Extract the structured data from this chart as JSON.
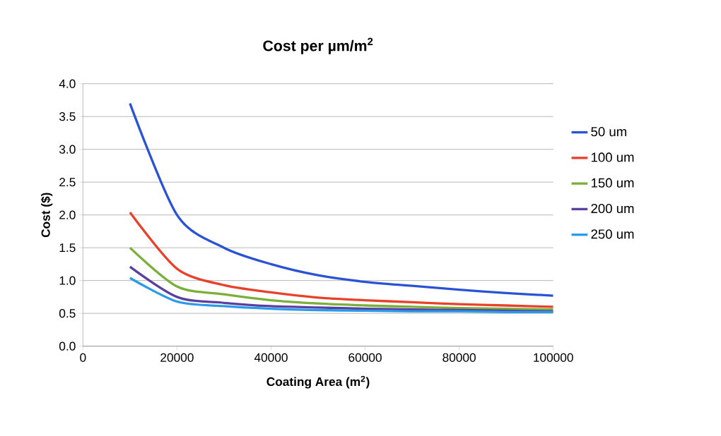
{
  "chart_data": {
    "type": "line",
    "title": "Cost per µm/m$^{2}$",
    "xlabel": "Coating Area (m$^{2}$)",
    "ylabel": "Cost ($)",
    "x": [
      10000,
      20000,
      30000,
      40000,
      50000,
      60000,
      70000,
      80000,
      90000,
      100000
    ],
    "series": [
      {
        "name": "50 um",
        "color": "#2a52d4",
        "values": [
          3.7,
          2.0,
          1.5,
          1.25,
          1.08,
          0.98,
          0.92,
          0.86,
          0.81,
          0.77
        ]
      },
      {
        "name": "100 um",
        "color": "#e8412a",
        "values": [
          2.04,
          1.18,
          0.93,
          0.82,
          0.74,
          0.7,
          0.67,
          0.64,
          0.62,
          0.6
        ]
      },
      {
        "name": "150 um",
        "color": "#7ab03a",
        "values": [
          1.5,
          0.91,
          0.79,
          0.7,
          0.65,
          0.62,
          0.6,
          0.58,
          0.57,
          0.56
        ]
      },
      {
        "name": "200 um",
        "color": "#5a3fa0",
        "values": [
          1.21,
          0.75,
          0.66,
          0.61,
          0.59,
          0.57,
          0.56,
          0.55,
          0.54,
          0.53
        ]
      },
      {
        "name": "250 um",
        "color": "#2a9be8",
        "values": [
          1.04,
          0.68,
          0.61,
          0.57,
          0.55,
          0.54,
          0.53,
          0.53,
          0.52,
          0.52
        ]
      }
    ],
    "xlim": [
      0,
      100000
    ],
    "xticks": [
      0,
      20000,
      40000,
      60000,
      80000,
      100000
    ],
    "ylim": [
      0,
      4
    ],
    "yticks": [
      {
        "value": 0,
        "label": "0.0"
      },
      {
        "value": 0.5,
        "label": "0.5"
      },
      {
        "value": 1,
        "label": "1.0"
      },
      {
        "value": 1.5,
        "label": "1.5"
      },
      {
        "value": 2,
        "label": "2.0"
      },
      {
        "value": 2.5,
        "label": "2.5"
      },
      {
        "value": 3,
        "label": "3.0"
      },
      {
        "value": 3.5,
        "label": "3.5"
      },
      {
        "value": 4,
        "label": "4.0"
      }
    ],
    "grid": "y",
    "legend": "right",
    "marker": "none",
    "line_style": "solid"
  }
}
